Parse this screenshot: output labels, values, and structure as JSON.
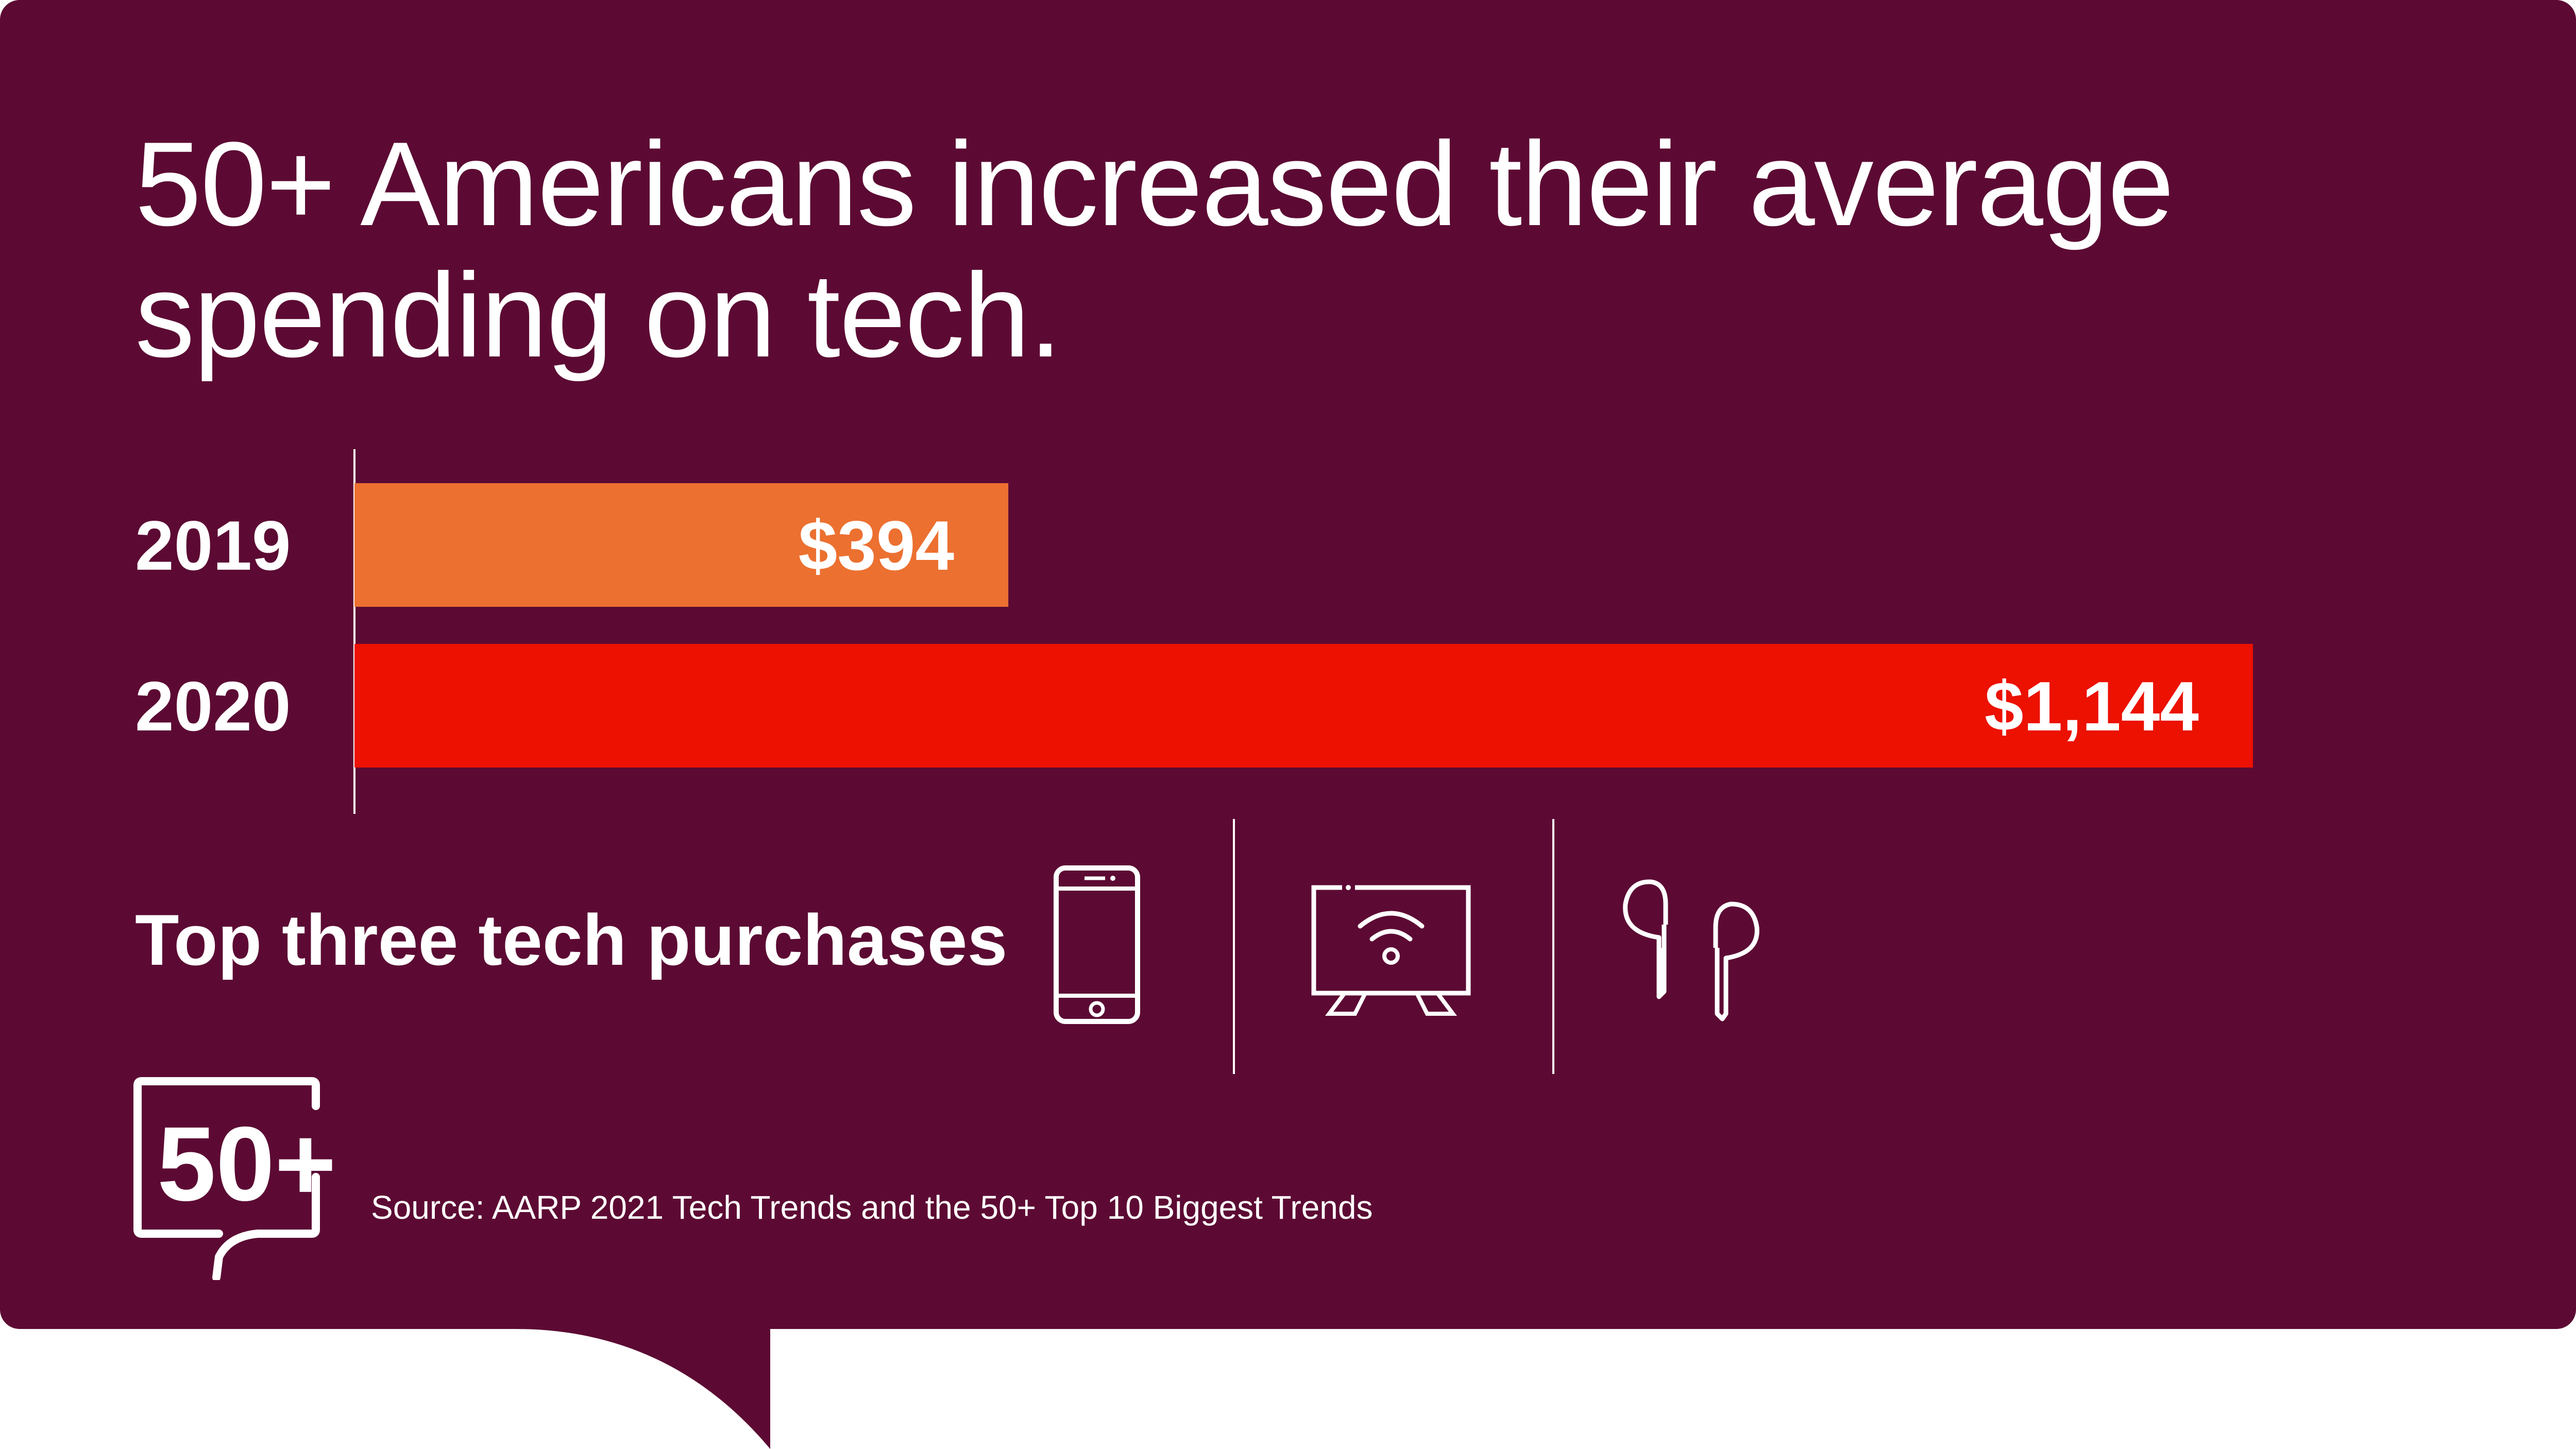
{
  "title": "50+ Americans increased their average spending on tech.",
  "chart_data": {
    "type": "bar",
    "orientation": "horizontal",
    "categories": [
      "2019",
      "2020"
    ],
    "values": [
      394,
      1144
    ],
    "value_labels": [
      "$394",
      "$1,144"
    ],
    "colors": [
      "#ec7030",
      "#ec1100"
    ],
    "xlim": [
      0,
      1144
    ],
    "grid": false
  },
  "purchases": {
    "label": "Top three tech purchases",
    "icons": [
      "smartphone-icon",
      "smart-tv-icon",
      "wireless-earbuds-icon"
    ]
  },
  "logo": {
    "text": "50+"
  },
  "source": "Source: AARP 2021 Tech Trends and the 50+ Top 10 Biggest Trends",
  "colors": {
    "background": "#5c0a33",
    "text": "#ffffff"
  }
}
